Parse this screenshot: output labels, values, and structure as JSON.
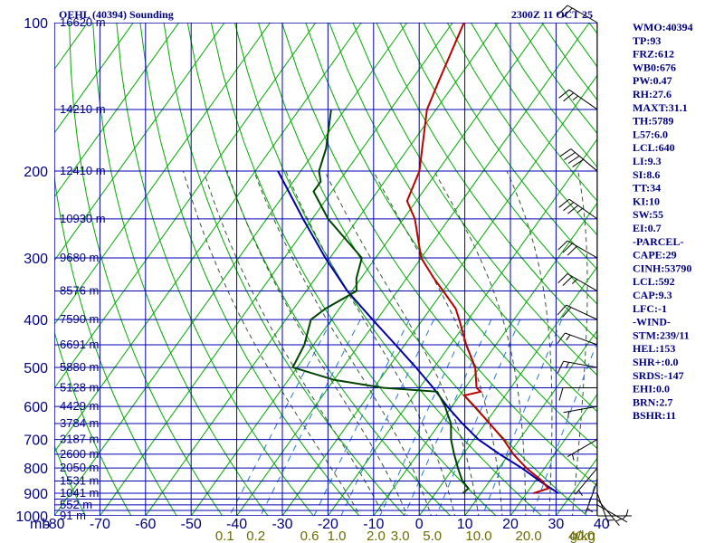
{
  "title_left": "OEHL (40394) Sounding",
  "title_right": "2300Z 11 OCT 25",
  "colors": {
    "grid": "#0000b0",
    "dry_adiabat": "#00aa00",
    "moist_adiabat": "#335533",
    "mixing_ratio": "#2277dd",
    "temperature": "#bb0000",
    "dewpoint": "#004400",
    "parcel": "#0000aa",
    "wind": "#000000",
    "text": "#000080",
    "mixlab": "#6b6b00"
  },
  "chart_data": {
    "type": "skewt",
    "title": "OEHL (40394) Sounding",
    "time": "2300Z 11 OCT 25",
    "pressure_unit": "mb",
    "pressure_levels": [
      {
        "p": 100,
        "label": "100"
      },
      {
        "p": 200,
        "label": "200"
      },
      {
        "p": 300,
        "label": "300"
      },
      {
        "p": 400,
        "label": "400"
      },
      {
        "p": 500,
        "label": "500"
      },
      {
        "p": 600,
        "label": "600"
      },
      {
        "p": 700,
        "label": "700"
      },
      {
        "p": 800,
        "label": "800"
      },
      {
        "p": 900,
        "label": "900"
      },
      {
        "p": 1000,
        "label": "1000"
      }
    ],
    "extra_isobars": [
      150,
      250,
      350,
      450,
      550,
      650,
      750,
      850,
      925,
      950,
      975
    ],
    "temp_ticks": [
      {
        "t": -80,
        "label": "-80"
      },
      {
        "t": -70,
        "label": "-70"
      },
      {
        "t": -60,
        "label": "-60"
      },
      {
        "t": -50,
        "label": "-50"
      },
      {
        "t": -40,
        "label": "-40"
      },
      {
        "t": -30,
        "label": "-30"
      },
      {
        "t": -20,
        "label": "-20"
      },
      {
        "t": -10,
        "label": "-10"
      },
      {
        "t": 0,
        "label": "0"
      },
      {
        "t": 10,
        "label": "10"
      },
      {
        "t": 20,
        "label": "20"
      },
      {
        "t": 30,
        "label": "30"
      },
      {
        "t": 40,
        "label": "40"
      }
    ],
    "mb_label": "mb",
    "height_labels": [
      {
        "p": 100,
        "label": "16620 m"
      },
      {
        "p": 150,
        "label": "14210 m"
      },
      {
        "p": 200,
        "label": "12410 m"
      },
      {
        "p": 250,
        "label": "10930 m"
      },
      {
        "p": 300,
        "label": "9680 m"
      },
      {
        "p": 350,
        "label": "8576 m"
      },
      {
        "p": 400,
        "label": "7590 m"
      },
      {
        "p": 450,
        "label": "6691 m"
      },
      {
        "p": 500,
        "label": "5880 m"
      },
      {
        "p": 550,
        "label": "5128 m"
      },
      {
        "p": 600,
        "label": "4429 m"
      },
      {
        "p": 650,
        "label": "3784 m"
      },
      {
        "p": 700,
        "label": "3187 m"
      },
      {
        "p": 750,
        "label": "2600 m"
      },
      {
        "p": 800,
        "label": "2050 m"
      },
      {
        "p": 850,
        "label": "1531 m"
      },
      {
        "p": 900,
        "label": "1041 m"
      },
      {
        "p": 950,
        "label": "552 m"
      },
      {
        "p": 1000,
        "label": "91 m"
      }
    ],
    "mixing_ratio_labels": [
      {
        "w": 0.1,
        "label": "0.1"
      },
      {
        "w": 0.2,
        "label": "0.2"
      },
      {
        "w": 0.6,
        "label": "0.6"
      },
      {
        "w": 1.0,
        "label": "1.0"
      },
      {
        "w": 2.0,
        "label": "2.0"
      },
      {
        "w": 3.0,
        "label": "3.0"
      },
      {
        "w": 5.0,
        "label": "5.0"
      },
      {
        "w": 10.0,
        "label": "10.0"
      },
      {
        "w": 20.0,
        "label": "20.0"
      },
      {
        "w": 40.0,
        "label": "40.0"
      }
    ],
    "mixing_ratio_unit": "g/kg",
    "temperature": [
      [
        900,
        21.5
      ],
      [
        880,
        24.0
      ],
      [
        850,
        21.5
      ],
      [
        800,
        16.0
      ],
      [
        750,
        11.0
      ],
      [
        700,
        6.5
      ],
      [
        650,
        1.0
      ],
      [
        600,
        -5.0
      ],
      [
        570,
        -9.0
      ],
      [
        560,
        -6.0
      ],
      [
        550,
        -7.5
      ],
      [
        500,
        -11.0
      ],
      [
        450,
        -16.5
      ],
      [
        400,
        -22.0
      ],
      [
        380,
        -24.5
      ],
      [
        350,
        -30.0
      ],
      [
        330,
        -34.0
      ],
      [
        300,
        -40.0
      ],
      [
        250,
        -47.5
      ],
      [
        230,
        -52.0
      ],
      [
        200,
        -54.0
      ],
      [
        150,
        -62.0
      ],
      [
        130,
        -64.0
      ],
      [
        100,
        -67.5
      ]
    ],
    "dewpoint": [
      [
        900,
        6.0
      ],
      [
        880,
        6.5
      ],
      [
        850,
        4.0
      ],
      [
        800,
        1.0
      ],
      [
        750,
        -2.0
      ],
      [
        700,
        -5.0
      ],
      [
        650,
        -7.5
      ],
      [
        600,
        -11.5
      ],
      [
        560,
        -15.5
      ],
      [
        550,
        -28.0
      ],
      [
        530,
        -40.0
      ],
      [
        500,
        -51.0
      ],
      [
        450,
        -52.0
      ],
      [
        400,
        -54.5
      ],
      [
        380,
        -53.0
      ],
      [
        350,
        -49.0
      ],
      [
        330,
        -51.0
      ],
      [
        300,
        -53.0
      ],
      [
        250,
        -66.5
      ],
      [
        220,
        -74.0
      ],
      [
        210,
        -74.0
      ],
      [
        200,
        -76.0
      ],
      [
        180,
        -78.0
      ],
      [
        150,
        -83.0
      ]
    ],
    "parcel": [
      [
        900,
        27.0
      ],
      [
        850,
        21.0
      ],
      [
        800,
        15.0
      ],
      [
        750,
        8.0
      ],
      [
        700,
        1.0
      ],
      [
        650,
        -5.0
      ],
      [
        600,
        -11.0
      ],
      [
        550,
        -17.0
      ],
      [
        500,
        -24.0
      ],
      [
        450,
        -32.0
      ],
      [
        400,
        -41.0
      ],
      [
        350,
        -51.0
      ],
      [
        300,
        -61.0
      ],
      [
        250,
        -72.0
      ],
      [
        200,
        -85.0
      ]
    ],
    "winds": [
      {
        "p": 100,
        "dir": 300,
        "spd": 20
      },
      {
        "p": 150,
        "dir": 305,
        "spd": 25
      },
      {
        "p": 200,
        "dir": 310,
        "spd": 40
      },
      {
        "p": 250,
        "dir": 305,
        "spd": 35
      },
      {
        "p": 300,
        "dir": 300,
        "spd": 30
      },
      {
        "p": 350,
        "dir": 300,
        "spd": 25
      },
      {
        "p": 400,
        "dir": 295,
        "spd": 20
      },
      {
        "p": 450,
        "dir": 290,
        "spd": 15
      },
      {
        "p": 500,
        "dir": 280,
        "spd": 15
      },
      {
        "p": 550,
        "dir": 270,
        "spd": 10
      },
      {
        "p": 600,
        "dir": 260,
        "spd": 5
      },
      {
        "p": 700,
        "dir": 240,
        "spd": 5
      },
      {
        "p": 800,
        "dir": 220,
        "spd": 5
      },
      {
        "p": 850,
        "dir": 200,
        "spd": 5
      },
      {
        "p": 900,
        "dir": 160,
        "spd": 5
      },
      {
        "p": 925,
        "dir": 140,
        "spd": 5
      },
      {
        "p": 950,
        "dir": 120,
        "spd": 5
      },
      {
        "p": 1000,
        "dir": 90,
        "spd": 5
      }
    ]
  },
  "indices": [
    "WMO:40394",
    "TP:93",
    "FRZ:612",
    "WB0:676",
    "PW:0.47",
    "RH:27.6",
    "MAXT:31.1",
    "TH:5789",
    "L57:6.0",
    "LCL:640",
    "LI:9.3",
    "SI:8.6",
    "TT:34",
    "KI:10",
    "SW:55",
    "EI:0.7",
    "-PARCEL-",
    "CAPE:29",
    "CINH:53790",
    "LCL:592",
    "CAP:9.3",
    "LFC:-1",
    "-WIND-",
    "STM:239/11",
    "HEL:153",
    "SHR+:0.0",
    "SRDS:-147",
    "EHI:0.0",
    "BRN:2.7",
    "BSHR:11"
  ]
}
